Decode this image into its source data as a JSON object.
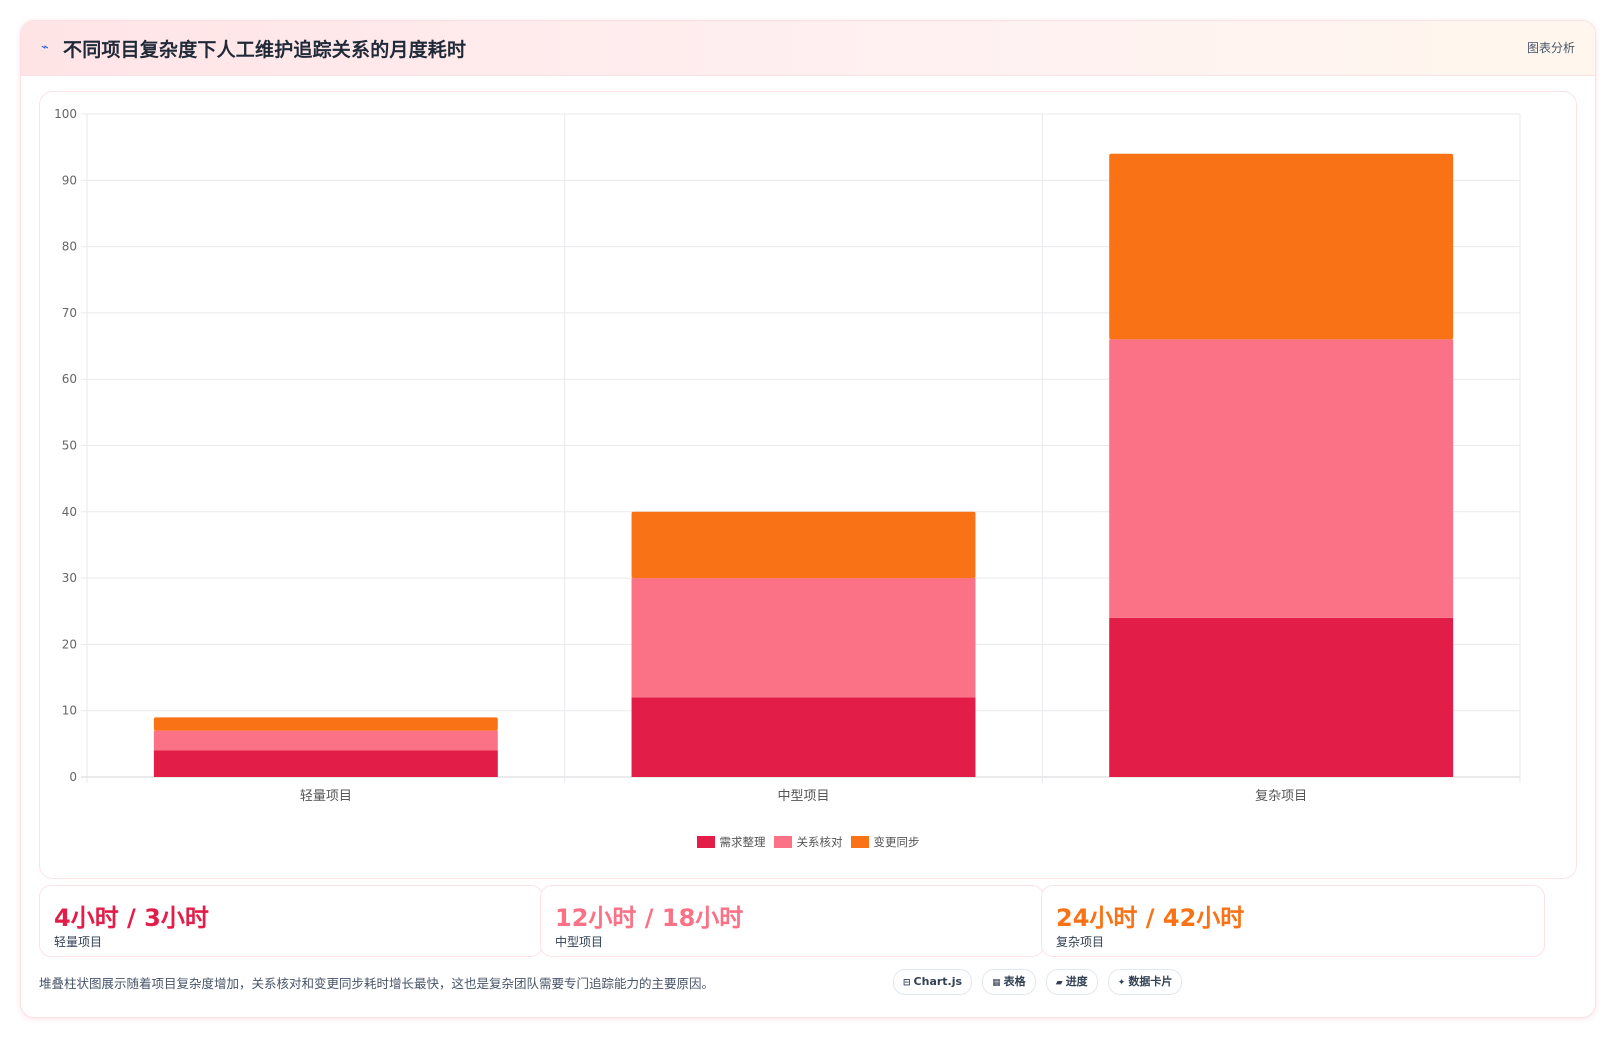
{
  "header": {
    "icon": "chart-line-icon",
    "title": "不同项目复杂度下人工维护追踪关系的月度耗时",
    "tag": "图表分析"
  },
  "chart_data": {
    "type": "bar",
    "stacked": true,
    "categories": [
      "轻量项目",
      "中型项目",
      "复杂项目"
    ],
    "series": [
      {
        "name": "需求整理",
        "values": [
          4,
          12,
          24
        ],
        "color": "#e11d48"
      },
      {
        "name": "关系核对",
        "values": [
          3,
          18,
          42
        ],
        "color": "#fb7185"
      },
      {
        "name": "变更同步",
        "values": [
          2,
          10,
          28
        ],
        "color": "#f97316"
      }
    ],
    "ylim": [
      0,
      100
    ],
    "yticks": [
      0,
      10,
      20,
      30,
      40,
      50,
      60,
      70,
      80,
      90,
      100
    ],
    "grid": true,
    "legend": "bottom",
    "title": "",
    "xlabel": "",
    "ylabel": ""
  },
  "stats": [
    {
      "value": "4小时 / 3小时",
      "label": "轻量项目",
      "color": "#e11d48"
    },
    {
      "value": "12小时 / 18小时",
      "label": "中型项目",
      "color": "#fb7185"
    },
    {
      "value": "24小时 / 42小时",
      "label": "复杂项目",
      "color": "#f97316"
    }
  ],
  "footnote": "堆叠柱状图展示随着项目复杂度增加，关系核对和变更同步耗时增长最快，这也是复杂团队需要专门追踪能力的主要原因。",
  "chips": [
    {
      "icon": "code-icon",
      "glyph": "⊟",
      "label": "Chart.js"
    },
    {
      "icon": "table-icon",
      "glyph": "▦",
      "label": "表格"
    },
    {
      "icon": "progress-icon",
      "glyph": "▰",
      "label": "进度"
    },
    {
      "icon": "sparkle-icon",
      "glyph": "✦",
      "label": "数据卡片"
    }
  ]
}
